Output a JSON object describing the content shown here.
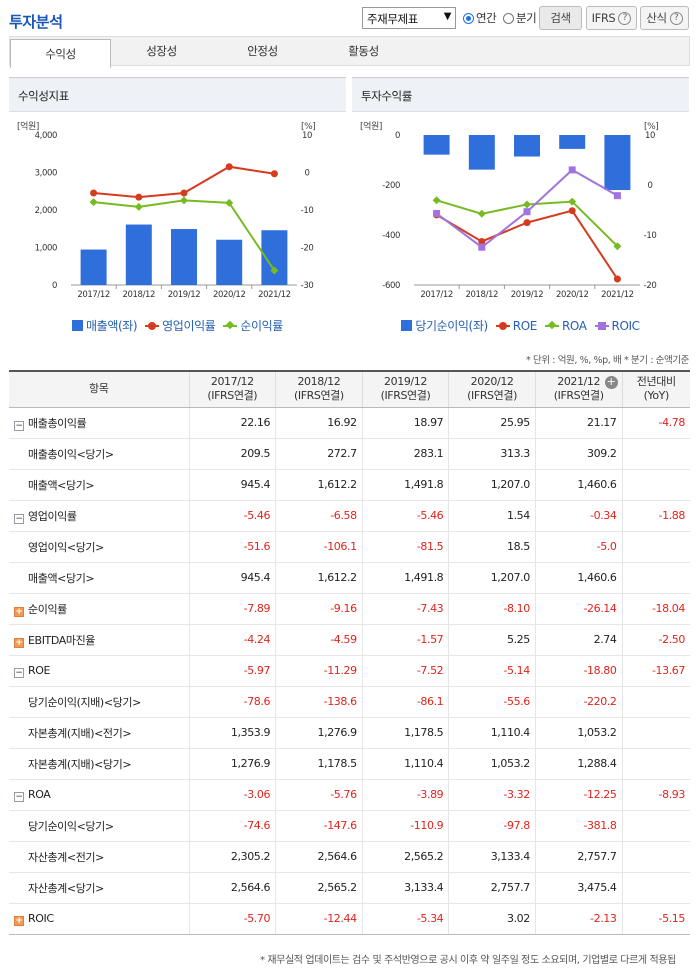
{
  "header": {
    "title": "투자분석",
    "select_value": "주재무제표",
    "radio_annual": "연간",
    "radio_quarter": "분기",
    "search_btn": "검색",
    "ifrs_btn": "IFRS",
    "formula_btn": "산식",
    "help_glyph": "?"
  },
  "tabs": [
    "수익성",
    "성장성",
    "안정성",
    "활동성"
  ],
  "left_chart": {
    "title": "수익성지표",
    "left_unit": "[억원]",
    "right_unit": "[%]",
    "legend": [
      "매출액(좌)",
      "영업이익률",
      "순이익률"
    ]
  },
  "right_chart": {
    "title": "투자수익률",
    "left_unit": "[억원]",
    "right_unit": "[%]",
    "legend": [
      "당기순이익(좌)",
      "ROE",
      "ROA",
      "ROIC"
    ]
  },
  "chart_data": [
    {
      "type": "bar",
      "title": "수익성지표",
      "categories": [
        "2017/12",
        "2018/12",
        "2019/12",
        "2020/12",
        "2021/12"
      ],
      "left_axis": {
        "ticks": [
          "4,000",
          "3,000",
          "2,000",
          "1,000",
          "0"
        ],
        "ylim": [
          0,
          4000
        ]
      },
      "right_axis": {
        "ticks": [
          "10",
          "0",
          "-10",
          "-20",
          "-30"
        ],
        "ylim": [
          -30,
          10
        ]
      },
      "series": [
        {
          "name": "매출액(좌)",
          "kind": "bar",
          "axis": "left",
          "color": "#2f6fdc",
          "values": [
            945.4,
            1612.2,
            1491.8,
            1207.0,
            1460.6
          ]
        },
        {
          "name": "영업이익률",
          "kind": "line",
          "axis": "right",
          "color": "#d63b1f",
          "values": [
            -5.46,
            -6.58,
            -5.46,
            1.54,
            -0.34
          ]
        },
        {
          "name": "순이익률",
          "kind": "line",
          "axis": "right",
          "color": "#77bb22",
          "values": [
            -7.89,
            -9.16,
            -7.43,
            -8.1,
            -26.14
          ]
        }
      ]
    },
    {
      "type": "bar",
      "title": "투자수익률",
      "categories": [
        "2017/12",
        "2018/12",
        "2019/12",
        "2020/12",
        "2021/12"
      ],
      "left_axis": {
        "ticks": [
          "0",
          "-200",
          "-400",
          "-600"
        ],
        "ylim": [
          -600,
          0
        ]
      },
      "right_axis": {
        "ticks": [
          "10",
          "0",
          "-10",
          "-20"
        ],
        "ylim": [
          -20,
          10
        ]
      },
      "series": [
        {
          "name": "당기순이익(좌)",
          "kind": "bar",
          "axis": "left",
          "color": "#2f6fdc",
          "values": [
            -78.6,
            -138.6,
            -86.1,
            -55.6,
            -220.2
          ]
        },
        {
          "name": "ROE",
          "kind": "line",
          "axis": "right",
          "color": "#d63b1f",
          "values": [
            -5.97,
            -11.29,
            -7.52,
            -5.14,
            -18.8
          ]
        },
        {
          "name": "ROA",
          "kind": "line",
          "axis": "right",
          "color": "#77bb22",
          "values": [
            -3.06,
            -5.76,
            -3.89,
            -3.32,
            -12.25
          ]
        },
        {
          "name": "ROIC",
          "kind": "line",
          "axis": "right",
          "color": "#a073e0",
          "values": [
            -5.7,
            -12.44,
            -5.34,
            3.02,
            -2.13
          ]
        }
      ]
    }
  ],
  "unit_note": "* 단위 : 억원, %, %p, 배   * 분기 : 순액기준",
  "table": {
    "headers": [
      "항목",
      "2017/12\n(IFRS연결)",
      "2018/12\n(IFRS연결)",
      "2019/12\n(IFRS연결)",
      "2020/12\n(IFRS연결)",
      "2021/12\n(IFRS연결)",
      "전년대비\n(YoY)"
    ],
    "rows": [
      {
        "label": "매출총이익률",
        "type": "minus",
        "vals": [
          "22.16",
          "16.92",
          "18.97",
          "25.95",
          "21.17",
          "-4.78"
        ]
      },
      {
        "label": "매출총이익<당기>",
        "type": "sub",
        "vals": [
          "209.5",
          "272.7",
          "283.1",
          "313.3",
          "309.2",
          ""
        ]
      },
      {
        "label": "매출액<당기>",
        "type": "sub",
        "vals": [
          "945.4",
          "1,612.2",
          "1,491.8",
          "1,207.0",
          "1,460.6",
          ""
        ]
      },
      {
        "label": "영업이익률",
        "type": "minus",
        "vals": [
          "-5.46",
          "-6.58",
          "-5.46",
          "1.54",
          "-0.34",
          "-1.88"
        ]
      },
      {
        "label": "영업이익<당기>",
        "type": "sub",
        "vals": [
          "-51.6",
          "-106.1",
          "-81.5",
          "18.5",
          "-5.0",
          ""
        ]
      },
      {
        "label": "매출액<당기>",
        "type": "sub",
        "vals": [
          "945.4",
          "1,612.2",
          "1,491.8",
          "1,207.0",
          "1,460.6",
          ""
        ]
      },
      {
        "label": "순이익률",
        "type": "plus",
        "vals": [
          "-7.89",
          "-9.16",
          "-7.43",
          "-8.10",
          "-26.14",
          "-18.04"
        ]
      },
      {
        "label": "EBITDA마진율",
        "type": "plus",
        "vals": [
          "-4.24",
          "-4.59",
          "-1.57",
          "5.25",
          "2.74",
          "-2.50"
        ]
      },
      {
        "label": "ROE",
        "type": "minus",
        "vals": [
          "-5.97",
          "-11.29",
          "-7.52",
          "-5.14",
          "-18.80",
          "-13.67"
        ]
      },
      {
        "label": "당기순이익(지배)<당기>",
        "type": "sub",
        "vals": [
          "-78.6",
          "-138.6",
          "-86.1",
          "-55.6",
          "-220.2",
          ""
        ]
      },
      {
        "label": "자본총계(지배)<전기>",
        "type": "sub",
        "vals": [
          "1,353.9",
          "1,276.9",
          "1,178.5",
          "1,110.4",
          "1,053.2",
          ""
        ]
      },
      {
        "label": "자본총계(지배)<당기>",
        "type": "sub",
        "vals": [
          "1,276.9",
          "1,178.5",
          "1,110.4",
          "1,053.2",
          "1,288.4",
          ""
        ]
      },
      {
        "label": "ROA",
        "type": "minus",
        "vals": [
          "-3.06",
          "-5.76",
          "-3.89",
          "-3.32",
          "-12.25",
          "-8.93"
        ]
      },
      {
        "label": "당기순이익<당기>",
        "type": "sub",
        "vals": [
          "-74.6",
          "-147.6",
          "-110.9",
          "-97.8",
          "-381.8",
          ""
        ]
      },
      {
        "label": "자산총계<전기>",
        "type": "sub",
        "vals": [
          "2,305.2",
          "2,564.6",
          "2,565.2",
          "3,133.4",
          "2,757.7",
          ""
        ]
      },
      {
        "label": "자산총계<당기>",
        "type": "sub",
        "vals": [
          "2,564.6",
          "2,565.2",
          "3,133.4",
          "2,757.7",
          "3,475.4",
          ""
        ]
      },
      {
        "label": "ROIC",
        "type": "plus",
        "vals": [
          "-5.70",
          "-12.44",
          "-5.34",
          "3.02",
          "-2.13",
          "-5.15"
        ]
      }
    ]
  },
  "footer_note": "* 재무실적 업데이트는 검수 및 주석반영으로 공시 이후 약 일주일 정도 소요되며, 기업별로 다르게 적용됩"
}
